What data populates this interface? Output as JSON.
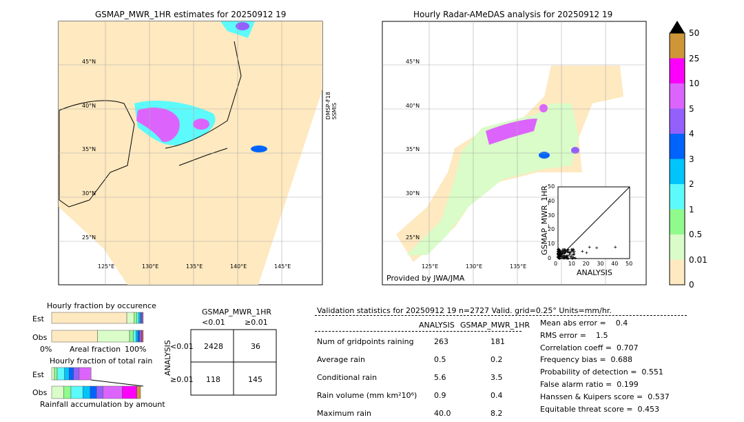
{
  "left_map": {
    "title": "GSMAP_MWR_1HR estimates for 20250912 19",
    "sensor_label": "DMSP-F18\nSSMIS",
    "lat_labels": [
      "45°N",
      "40°N",
      "35°N",
      "30°N",
      "25°N"
    ],
    "lon_labels": [
      "125°E",
      "130°E",
      "135°E",
      "140°E",
      "145°E"
    ]
  },
  "right_map": {
    "title": "Hourly Radar-AMeDAS analysis for 20250912 19",
    "credit": "Provided by JWA/JMA",
    "lat_labels": [
      "45°N",
      "40°N",
      "35°N",
      "30°N",
      "25°N"
    ],
    "lon_labels": [
      "125°E",
      "130°E",
      "135°E"
    ]
  },
  "colorbar": {
    "ticks": [
      "0",
      "0.01",
      "0.5",
      "1",
      "2",
      "3",
      "4",
      "5",
      "10",
      "25",
      "50"
    ],
    "colors": [
      "#fee9c0",
      "#d9fcc8",
      "#90fa8c",
      "#5cfafa",
      "#00c4fc",
      "#0064fc",
      "#9460fc",
      "#dc64fc",
      "#fc00fc",
      "#cf9638"
    ],
    "over_color": "#000000"
  },
  "scatter": {
    "xlabel": "ANALYSIS",
    "ylabel": "GSMAP_MWR_1HR",
    "ticks": [
      "0",
      "10",
      "20",
      "30",
      "40",
      "50"
    ]
  },
  "occurrence": {
    "title": "Hourly fraction by occurence",
    "est_label": "Est",
    "obs_label": "Obs",
    "x0": "0%",
    "xlabel": "Areal fraction",
    "x1": "100%"
  },
  "rainfrac": {
    "title": "Hourly fraction of total rain",
    "est_label": "Est",
    "obs_label": "Obs",
    "xlabel": "Rainfall accumulation by amount"
  },
  "contingency": {
    "col_title": "GSMAP_MWR_1HR",
    "cols": [
      "<0.01",
      "≥0.01"
    ],
    "row_title": "ANALYSIS",
    "rows": [
      "<0.01",
      "≥0.01"
    ],
    "cells": [
      [
        "2428",
        "36"
      ],
      [
        "118",
        "145"
      ]
    ]
  },
  "stats": {
    "header": "Validation statistics for 20250912 19  n=2727 Valid. grid=0.25° Units=mm/hr.",
    "col1": "ANALYSIS",
    "col2": "GSMAP_MWR_1HR",
    "rows": [
      {
        "label": "Num of gridpoints raining",
        "a": "263",
        "g": "181"
      },
      {
        "label": "Average rain",
        "a": "0.5",
        "g": "0.2"
      },
      {
        "label": "Conditional rain",
        "a": "5.6",
        "g": "3.5"
      },
      {
        "label": "Rain volume (mm km²10⁶)",
        "a": "0.9",
        "g": "0.4"
      },
      {
        "label": "Maximum rain",
        "a": "40.0",
        "g": "8.2"
      }
    ],
    "scores": [
      "Mean abs error =    0.4",
      "RMS error =    1.5",
      "Correlation coeff =  0.707",
      "Frequency bias =  0.688",
      "Probability of detection =  0.551",
      "False alarm ratio =  0.199",
      "Hanssen & Kuipers score =  0.537",
      "Equitable threat score =  0.453"
    ]
  },
  "chart_data": {
    "type": "map",
    "occurrence_fraction": {
      "est": [
        0.82,
        0.08,
        0.03,
        0.02,
        0.02,
        0.01,
        0.01,
        0.01
      ],
      "obs": [
        0.5,
        0.35,
        0.04,
        0.03,
        0.02,
        0.02,
        0.01,
        0.01,
        0.01,
        0.01
      ]
    },
    "rain_fraction": {
      "est": [
        0.03,
        0.03,
        0.08,
        0.05,
        0.05,
        0.06,
        0.13
      ],
      "obs": [
        0.13,
        0.08,
        0.13,
        0.08,
        0.07,
        0.07,
        0.21,
        0.16,
        0.04
      ]
    },
    "contingency": [
      [
        2428,
        36
      ],
      [
        118,
        145
      ]
    ]
  }
}
